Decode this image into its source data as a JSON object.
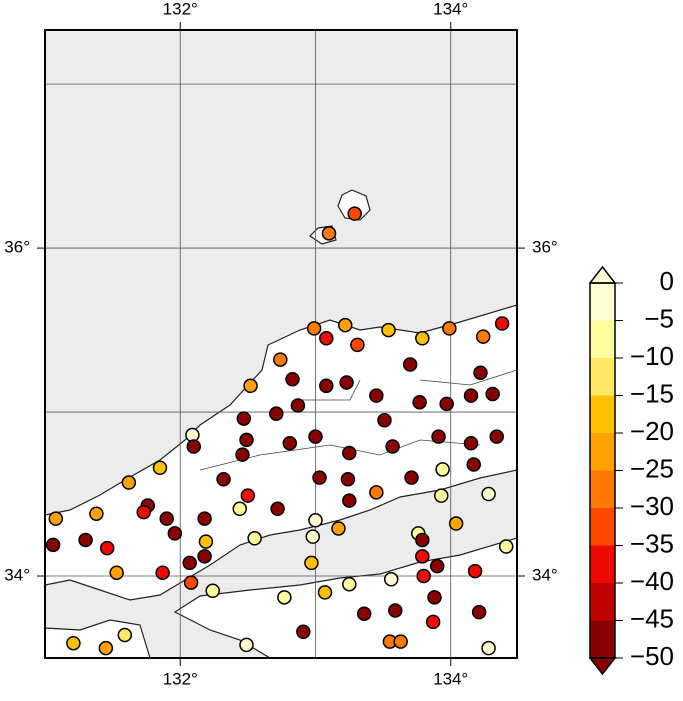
{
  "chart_data": {
    "type": "scatter",
    "xlim": [
      131.0,
      134.49
    ],
    "ylim": [
      33.5,
      37.33
    ],
    "xticks": [
      {
        "value": 132,
        "label": "132°"
      },
      {
        "value": 134,
        "label": "134°"
      }
    ],
    "yticks": [
      {
        "value": 34,
        "label": "34°"
      },
      {
        "value": 36,
        "label": "36°"
      }
    ],
    "xgrid": [
      132,
      133,
      134
    ],
    "ygrid": [
      34,
      35,
      36,
      37
    ],
    "x": [
      133.29,
      133.1,
      132.99,
      133.08,
      133.22,
      133.31,
      133.54,
      133.79,
      133.99,
      134.24,
      134.38,
      132.74,
      132.83,
      132.52,
      133.08,
      133.23,
      133.7,
      134.22,
      133.45,
      134.31,
      132.87,
      132.71,
      132.47,
      133.77,
      133.97,
      134.15,
      133.51,
      132.09,
      132.49,
      133.0,
      132.1,
      132.81,
      133.91,
      134.34,
      133.57,
      132.46,
      133.25,
      134.15,
      131.85,
      133.94,
      131.62,
      132.32,
      133.03,
      133.71,
      134.17,
      133.24,
      131.76,
      131.73,
      132.5,
      133.45,
      133.25,
      133.93,
      134.28,
      131.38,
      131.08,
      132.44,
      132.72,
      131.9,
      132.18,
      133.0,
      133.17,
      134.04,
      131.96,
      132.55,
      132.98,
      132.19,
      133.76,
      131.06,
      131.3,
      131.46,
      133.79,
      134.41,
      132.18,
      133.79,
      132.07,
      132.97,
      133.9,
      131.53,
      131.87,
      134.18,
      133.8,
      132.08,
      133.25,
      133.56,
      132.24,
      133.07,
      132.77,
      133.88,
      133.36,
      133.59,
      134.21,
      133.87,
      132.91,
      131.59,
      131.21,
      132.49,
      133.55,
      133.63,
      131.45,
      134.28
    ],
    "y": [
      36.21,
      36.09,
      35.51,
      35.45,
      35.53,
      35.41,
      35.5,
      35.45,
      35.51,
      35.46,
      35.54,
      35.32,
      35.2,
      35.16,
      35.16,
      35.18,
      35.29,
      35.24,
      35.1,
      35.11,
      35.04,
      34.99,
      34.96,
      35.06,
      35.05,
      35.1,
      34.95,
      34.86,
      34.83,
      34.85,
      34.79,
      34.81,
      34.85,
      34.85,
      34.79,
      34.74,
      34.75,
      34.81,
      34.66,
      34.65,
      34.57,
      34.59,
      34.6,
      34.6,
      34.68,
      34.59,
      34.43,
      34.39,
      34.49,
      34.51,
      34.46,
      34.49,
      34.5,
      34.38,
      34.35,
      34.41,
      34.41,
      34.35,
      34.35,
      34.34,
      34.29,
      34.32,
      34.26,
      34.23,
      34.24,
      34.21,
      34.26,
      34.19,
      34.22,
      34.17,
      34.22,
      34.18,
      34.12,
      34.12,
      34.08,
      34.08,
      34.06,
      34.02,
      34.02,
      34.03,
      34.0,
      33.96,
      33.95,
      33.98,
      33.91,
      33.9,
      33.87,
      33.87,
      33.77,
      33.79,
      33.78,
      33.72,
      33.66,
      33.64,
      33.59,
      33.58,
      33.6,
      33.6,
      33.56,
      33.56
    ],
    "values": [
      -33,
      -28,
      -28,
      -38,
      -23,
      -33,
      -18,
      -18,
      -28,
      -28,
      -38,
      -28,
      -47,
      -23,
      -47,
      -47,
      -47,
      -47,
      -47,
      -47,
      -47,
      -47,
      -47,
      -47,
      -47,
      -47,
      -47,
      -3,
      -47,
      -47,
      -47,
      -47,
      -47,
      -47,
      -47,
      -47,
      -47,
      -47,
      -18,
      -8,
      -23,
      -47,
      -47,
      -47,
      -47,
      -47,
      -47,
      -38,
      -38,
      -28,
      -47,
      -8,
      -3,
      -23,
      -23,
      -8,
      -47,
      -47,
      -47,
      -3,
      -23,
      -23,
      -47,
      -8,
      -3,
      -18,
      -8,
      -47,
      -47,
      -38,
      -47,
      -8,
      -47,
      -38,
      -47,
      -18,
      -47,
      -23,
      -38,
      -38,
      -38,
      -33,
      -8,
      -3,
      -8,
      -18,
      -8,
      -47,
      -47,
      -47,
      -47,
      -38,
      -47,
      -13,
      -18,
      -3,
      -28,
      -28,
      -23,
      -3
    ],
    "colorbar": {
      "lim": [
        -50,
        0
      ],
      "ticks": [
        0,
        {
          "value": -5,
          "label": "−5"
        },
        {
          "value": -10,
          "label": "−10"
        },
        {
          "value": -15,
          "label": "−15"
        },
        {
          "value": -20,
          "label": "−20"
        },
        {
          "value": -25,
          "label": "−25"
        },
        {
          "value": -30,
          "label": "−30"
        },
        {
          "value": -35,
          "label": "−35"
        },
        {
          "value": -40,
          "label": "−40"
        },
        {
          "value": -45,
          "label": "−45"
        },
        {
          "value": -50,
          "label": "−50"
        }
      ],
      "colors": [
        "#ffffd4",
        "#ffff9e",
        "#ffe866",
        "#ffc000",
        "#ffa200",
        "#ff7a00",
        "#ff4800",
        "#ee0a00",
        "#c00000",
        "#880000"
      ]
    }
  }
}
